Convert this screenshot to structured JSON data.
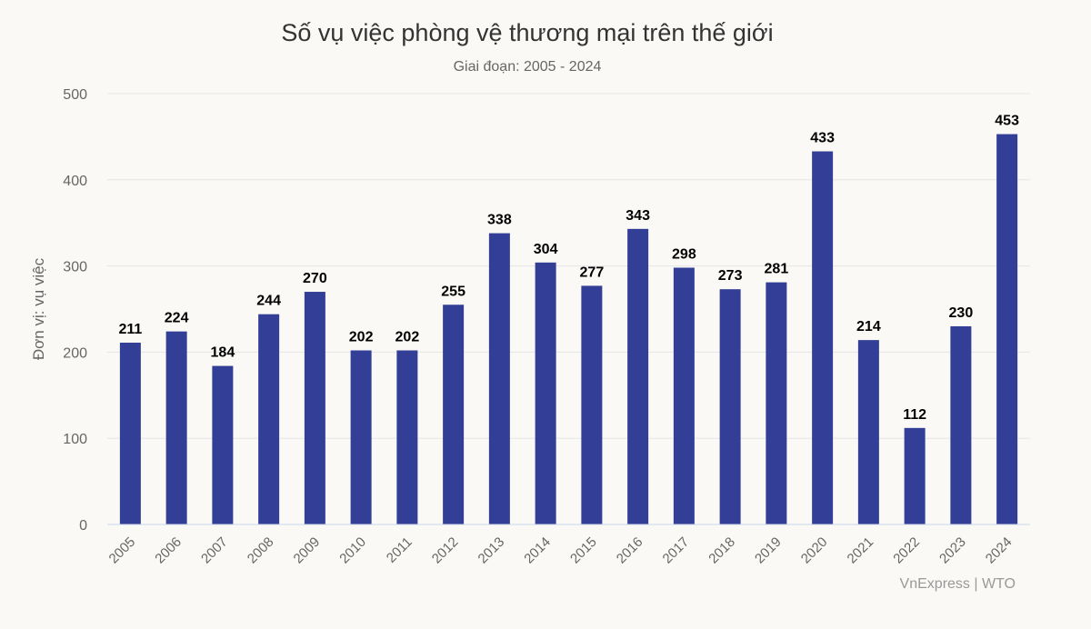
{
  "chart_data": {
    "type": "bar",
    "title": "Số vụ việc phòng vệ thương mại trên thế giới",
    "subtitle": "Giai đoạn: 2005 - 2024",
    "ylabel": "Đơn vị: vụ việc",
    "xlabel": "",
    "categories": [
      "2005",
      "2006",
      "2007",
      "2008",
      "2009",
      "2010",
      "2011",
      "2012",
      "2013",
      "2014",
      "2015",
      "2016",
      "2017",
      "2018",
      "2019",
      "2020",
      "2021",
      "2022",
      "2023",
      "2024"
    ],
    "values": [
      211,
      224,
      184,
      244,
      270,
      202,
      202,
      255,
      338,
      304,
      277,
      343,
      298,
      273,
      281,
      433,
      214,
      112,
      230,
      453
    ],
    "ylim": [
      0,
      500
    ],
    "yticks": [
      0,
      100,
      200,
      300,
      400,
      500
    ],
    "grid": true,
    "legend": "none",
    "bar_color": "#333f96",
    "source": "VnExpress | WTO"
  }
}
